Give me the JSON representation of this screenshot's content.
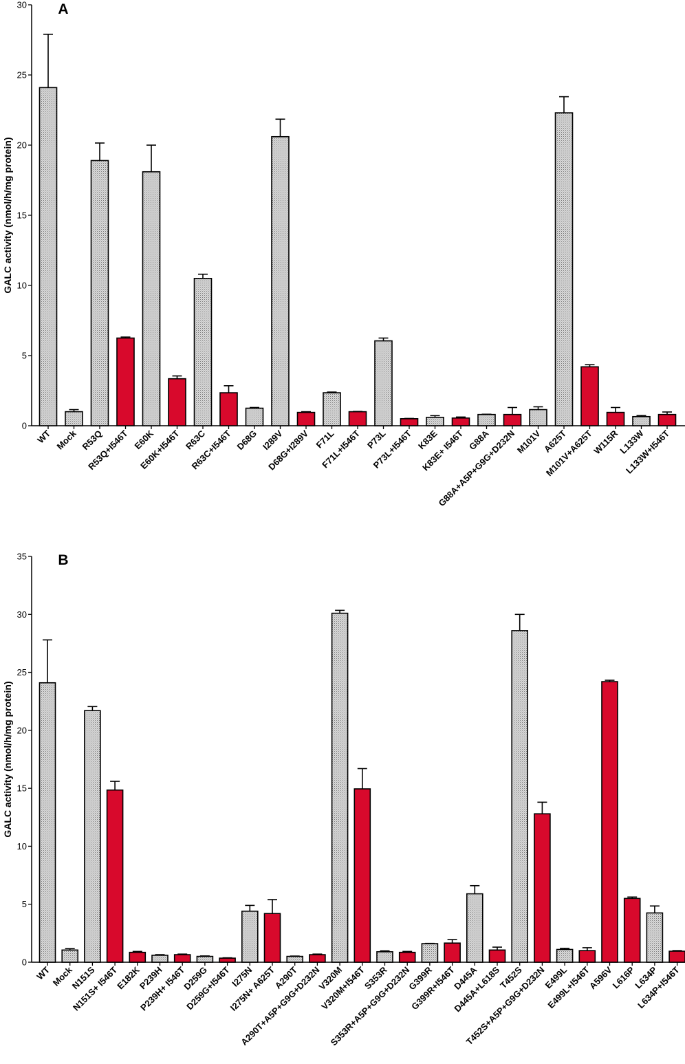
{
  "chart_data": [
    {
      "type": "bar",
      "panel": "A",
      "ylabel": "GALC activity (nmol/h/mg protein)",
      "ylim": [
        0,
        30
      ],
      "yticks": [
        0,
        5,
        10,
        15,
        20,
        25,
        30
      ],
      "categories": [
        "WT",
        "Mock",
        "R53Q",
        "R53Q+I546T",
        "E60K",
        "E60K+I546T",
        "R63C",
        "R63C+I546T",
        "D68G",
        "I289V",
        "D68G+I289V",
        "F71L",
        "F71L+I546T",
        "P73L",
        "P73L+I546T",
        "K83E",
        "K83E+ I546T",
        "G88A",
        "G88A+A5P+G9G+D232N",
        "M101V",
        "A625T",
        "M101V+A625T",
        "W115R",
        "L133W",
        "L133W+I546T"
      ],
      "values": [
        24.1,
        1.0,
        18.9,
        6.25,
        18.1,
        3.35,
        10.5,
        2.35,
        1.25,
        20.6,
        0.95,
        2.35,
        1.0,
        6.05,
        0.5,
        0.6,
        0.55,
        0.8,
        0.8,
        1.15,
        22.3,
        4.2,
        0.95,
        0.65,
        0.8
      ],
      "errors": [
        3.8,
        0.15,
        1.25,
        0.07,
        1.9,
        0.2,
        0.3,
        0.5,
        0.05,
        1.25,
        0.05,
        0.05,
        0.02,
        0.2,
        0.02,
        0.12,
        0.07,
        0.02,
        0.5,
        0.2,
        1.15,
        0.15,
        0.35,
        0.08,
        0.18
      ],
      "colors": [
        "grey",
        "grey",
        "grey",
        "red",
        "grey",
        "red",
        "grey",
        "red",
        "grey",
        "grey",
        "red",
        "grey",
        "red",
        "grey",
        "red",
        "grey",
        "red",
        "grey",
        "red",
        "grey",
        "grey",
        "red",
        "red",
        "grey",
        "red"
      ]
    },
    {
      "type": "bar",
      "panel": "B",
      "ylabel": "GALC activity (nmol/h/mg protein)",
      "ylim": [
        0,
        35
      ],
      "yticks": [
        0,
        5,
        10,
        15,
        20,
        25,
        30,
        35
      ],
      "categories": [
        "WT",
        "Mock",
        "N151S",
        "N151S+ I546T",
        "E182K",
        "P239H",
        "P239H+ I546T",
        "D259G",
        "D259G+I546T",
        "I275N",
        "I275N+ A625T",
        "A290T",
        "A290T+A5P+G9G+D232N",
        "V320M",
        "V320M+I546T",
        "S353R",
        "S353R+A5P+G9G+D232N",
        "G399R",
        "G399R+I546T",
        "D445A",
        "D445A+L618S",
        "T452S",
        "T452S+A5P+G9G+D232N",
        "E499L",
        "E499L+I546T",
        "A596V",
        "L616P",
        "L634P",
        "L634P+I546T"
      ],
      "values": [
        24.1,
        1.05,
        21.7,
        14.85,
        0.85,
        0.6,
        0.65,
        0.5,
        0.35,
        4.4,
        4.2,
        0.5,
        0.65,
        30.1,
        14.95,
        0.9,
        0.85,
        1.6,
        1.65,
        5.9,
        1.05,
        28.6,
        12.8,
        1.1,
        1.0,
        24.2,
        5.5,
        4.25,
        0.95
      ],
      "errors": [
        3.7,
        0.12,
        0.35,
        0.75,
        0.08,
        0.05,
        0.05,
        0.04,
        0.03,
        0.5,
        1.2,
        0.03,
        0.05,
        0.25,
        1.75,
        0.08,
        0.08,
        0.02,
        0.3,
        0.7,
        0.25,
        1.4,
        1.0,
        0.1,
        0.25,
        0.12,
        0.12,
        0.6,
        0.05
      ],
      "colors": [
        "grey",
        "grey",
        "grey",
        "red",
        "red",
        "grey",
        "red",
        "grey",
        "red",
        "grey",
        "red",
        "grey",
        "red",
        "grey",
        "red",
        "grey",
        "red",
        "grey",
        "red",
        "grey",
        "red",
        "grey",
        "red",
        "grey",
        "red",
        "red",
        "red",
        "grey",
        "red"
      ]
    }
  ],
  "panels": [
    {
      "letter": "A"
    },
    {
      "letter": "B"
    }
  ],
  "palette": {
    "grey": "#c8c8c8",
    "red": "#d8092c",
    "stroke": "#000000"
  }
}
